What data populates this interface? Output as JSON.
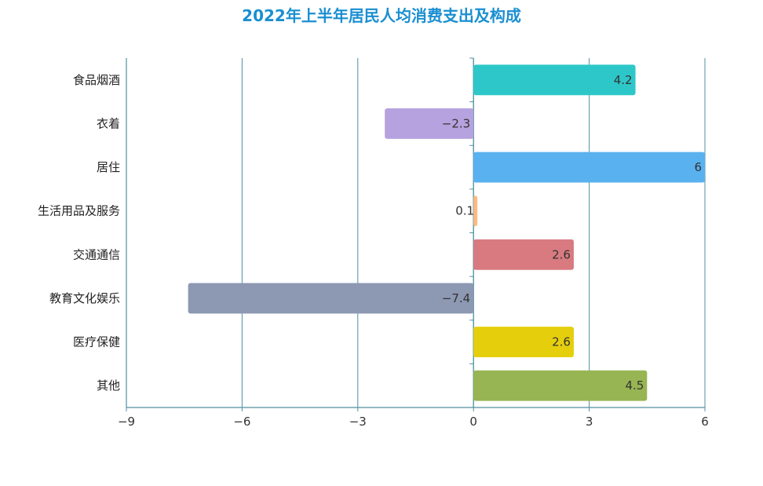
{
  "chart_data": {
    "type": "bar",
    "orientation": "horizontal",
    "title": "2022年上半年居民人均消费支出及构成",
    "categories": [
      "食品烟酒",
      "衣着",
      "居住",
      "生活用品及服务",
      "交通通信",
      "教育文化娱乐",
      "医疗保健",
      "其他"
    ],
    "values": [
      4.2,
      -2.3,
      6,
      0.1,
      2.6,
      -7.4,
      2.6,
      4.5
    ],
    "value_labels": [
      "4.2",
      "−2.3",
      "6",
      "0.1",
      "2.6",
      "−7.4",
      "2.6",
      "4.5"
    ],
    "colors": [
      "#2ec7c9",
      "#b6a2de",
      "#5ab1ef",
      "#ffb980",
      "#d87a80",
      "#8d98b3",
      "#e5cf0d",
      "#97b552"
    ],
    "xlim": [
      -9,
      6
    ],
    "x_ticks": [
      -9,
      -6,
      -3,
      0,
      3,
      6
    ],
    "x_tick_labels": [
      "−9",
      "−6",
      "−3",
      "0",
      "3",
      "6"
    ],
    "grid": true,
    "xlabel": "",
    "ylabel": ""
  },
  "style": {
    "title_color": "#1a8fd1",
    "axis_color": "#4f8fa0",
    "grid_color": "#4f8fa0"
  }
}
